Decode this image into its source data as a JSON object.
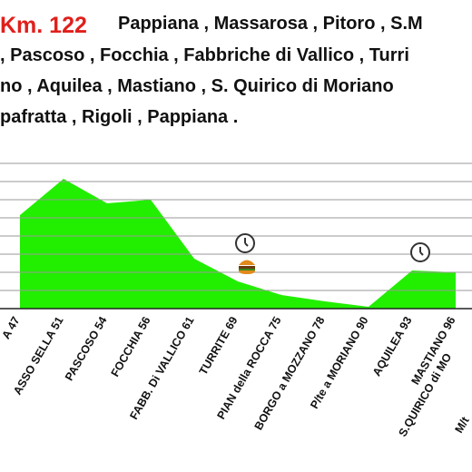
{
  "chart_data": {
    "type": "area",
    "title": "Km. 122",
    "subtitle": [
      "Pappiana , Massarosa , Pitoro , S.M",
      ", Pascoso , Focchia , Fabbriche di Vallico , Turri",
      "no , Aquilea , Mastiano , S. Quirico di Moriano",
      "pafratta , Rigoli , Pappiana ."
    ],
    "categories": [
      "A 47",
      "ASSO SELLA 51",
      "PASCOSO 54",
      "FOCCHIA 56",
      "FABB. Di VALLICO 61",
      "TURRITE 69",
      "PIAN della ROCCA 75",
      "BORGO a MOZZANO 78",
      "P/te a MORIANO 90",
      "AQUILEA 93",
      "MASTIANO 96",
      "S.QUIRICO di MO",
      "M/t"
    ],
    "values": [
      5.15,
      7.15,
      5.8,
      6.0,
      2.75,
      1.5,
      0.75,
      0.4,
      0.1,
      2.1,
      2.0,
      null,
      null
    ],
    "color": "#22ee00",
    "ylim": [
      0,
      8.1
    ],
    "yticks": [
      0,
      1,
      2,
      3,
      4,
      5,
      6,
      7,
      8
    ],
    "grid": true
  }
}
